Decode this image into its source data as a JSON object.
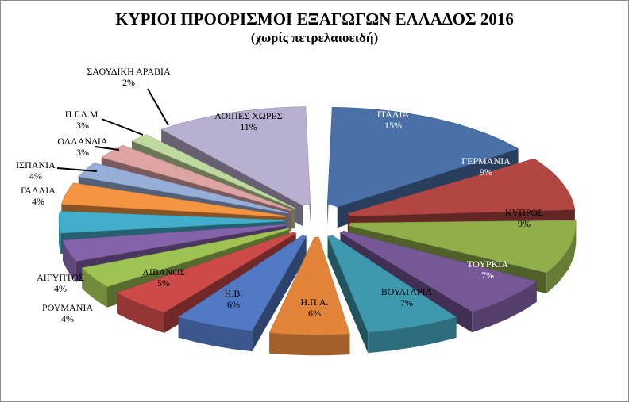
{
  "title": "ΚΥΡΙΟΙ ΠΡΟΟΡΙΣΜΟΙ ΕΞΑΓΩΓΩΝ ΕΛΛΑΔΟΣ 2016",
  "subtitle": "(χωρίς πετρελαιοειδή)",
  "chart_data": {
    "type": "pie",
    "title": "ΚΥΡΙΟΙ ΠΡΟΟΡΙΣΜΟΙ ΕΞΑΓΩΓΩΝ ΕΛΛΑΔΟΣ 2016",
    "subtitle": "(χωρίς πετρελαιοειδή)",
    "style": "3d-exploded",
    "categories": [
      "ΙΤΑΛΙΑ",
      "ΓΕΡΜΑΝΙΑ",
      "ΚΥΠΡΟΣ",
      "ΤΟΥΡΚΙΑ",
      "ΒΟΥΛΓΑΡΙΑ",
      "Η.Π.Α.",
      "Η.Β.",
      "ΛΙΒΑΝΟΣ",
      "ΡΟΥΜΑΝΙΑ",
      "ΑΙΓΥΠΤΟΣ",
      "ΓΑΛΛΙΑ",
      "ΙΣΠΑΝΙΑ",
      "ΟΛΛΑΝΔΙΑ",
      "Π.Γ.Δ.Μ.",
      "ΣΑΟΥΔΙΚΗ ΑΡΑΒΙΑ",
      "ΛΟΙΠΕΣ ΧΩΡΕΣ"
    ],
    "values": [
      15,
      9,
      9,
      7,
      7,
      6,
      6,
      5,
      4,
      4,
      4,
      4,
      3,
      3,
      2,
      11
    ],
    "value_labels": [
      "15%",
      "9%",
      "9%",
      "7%",
      "7%",
      "6%",
      "6%",
      "5%",
      "4%",
      "4%",
      "4%",
      "4%",
      "3%",
      "3%",
      "2%",
      "11%"
    ],
    "colors": [
      "#4a70a8",
      "#b24642",
      "#90ae4a",
      "#775897",
      "#3e98ae",
      "#e2853a",
      "#5279c4",
      "#cc4b48",
      "#9fc353",
      "#8563aa",
      "#42aecb",
      "#f69541",
      "#97afd8",
      "#dea4a3",
      "#c0d99e",
      "#b9afd0"
    ]
  }
}
